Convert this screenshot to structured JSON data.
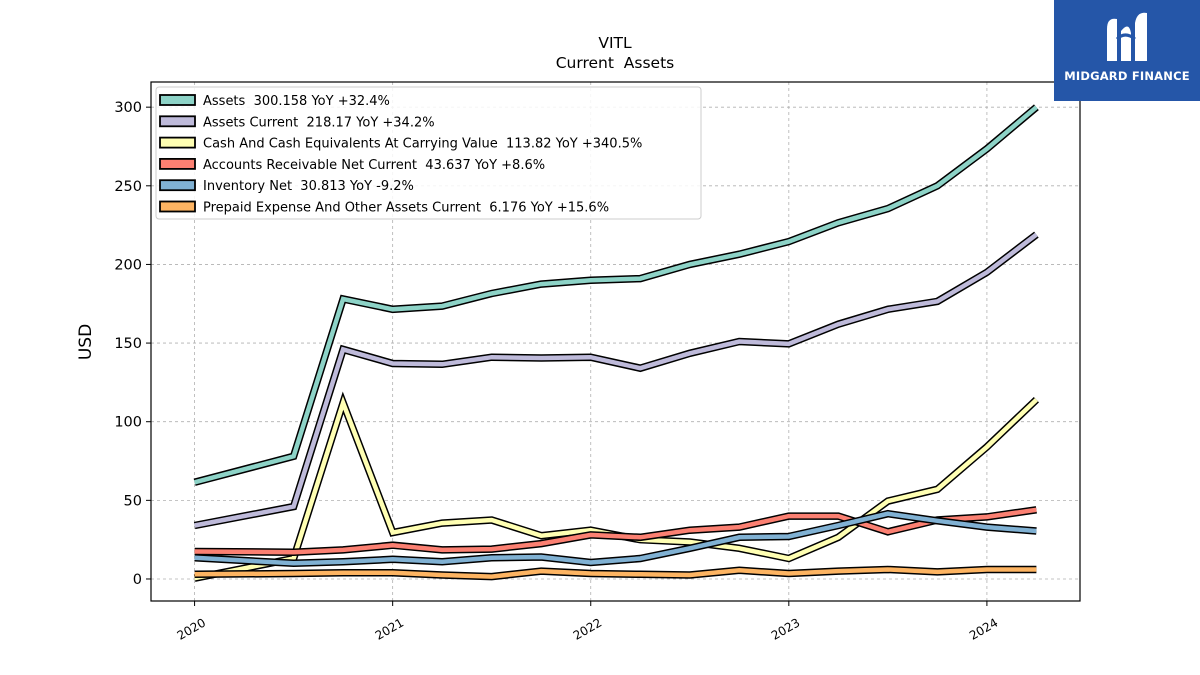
{
  "brand": {
    "name": "MIDGARD FINANCE"
  },
  "chart_data": {
    "type": "line",
    "title": "VITL",
    "subtitle": "Current  Assets",
    "xlabel": "",
    "ylabel": "USD",
    "x_ticks": [
      "2020",
      "2021",
      "2022",
      "2023",
      "2024"
    ],
    "y_ticks": [
      "0",
      "50",
      "100",
      "150",
      "200",
      "250",
      "300"
    ],
    "xlim": [
      2019.78,
      2024.47
    ],
    "ylim": [
      -14,
      316
    ],
    "grid": true,
    "legend_position": "upper-left",
    "x": [
      2020.0,
      2020.5,
      2020.75,
      2021.0,
      2021.25,
      2021.5,
      2021.75,
      2022.0,
      2022.25,
      2022.5,
      2022.75,
      2023.0,
      2023.25,
      2023.5,
      2023.75,
      2024.0,
      2024.25
    ],
    "series": [
      {
        "name": "Assets",
        "legend": "Assets  300.158 YoY +32.4%",
        "color": "#8dd3c7",
        "values": [
          61.5,
          78,
          178,
          171.5,
          173.5,
          181.5,
          187.5,
          190,
          191,
          200,
          206.5,
          214.5,
          226.5,
          235.5,
          250,
          273.5,
          300
        ]
      },
      {
        "name": "Assets Current",
        "legend": "Assets Current  218.17 YoY +34.2%",
        "color": "#bebada",
        "values": [
          34,
          46,
          146,
          137,
          136.5,
          141,
          140.5,
          141,
          134,
          143.5,
          151,
          149.5,
          162,
          171.5,
          176.5,
          195,
          219
        ]
      },
      {
        "name": "Cash And Cash Equivalents At Carrying Value",
        "legend": "Cash And Cash Equivalents At Carrying Value  113.82 YoY +340.5%",
        "color": "#ffffb3",
        "values": [
          0.5,
          13,
          112,
          29.5,
          35.5,
          37.5,
          27.5,
          31,
          25,
          23.5,
          19.5,
          13,
          26.5,
          49.5,
          57,
          84,
          114
        ]
      },
      {
        "name": "Accounts Receivable Net Current",
        "legend": "Accounts Receivable Net Current  43.637 YoY +8.6%",
        "color": "#fb8072",
        "values": [
          17.5,
          17,
          18.5,
          21.5,
          18.5,
          19,
          22.5,
          28,
          26.5,
          31,
          33,
          40,
          40,
          30,
          37.5,
          39.5,
          44
        ]
      },
      {
        "name": "Inventory Net",
        "legend": "Inventory Net  30.813 YoY -9.2%",
        "color": "#80b1d3",
        "values": [
          13.5,
          10,
          11,
          12.5,
          11,
          13.5,
          14,
          10.5,
          13,
          19.5,
          26.5,
          27,
          34,
          41.5,
          37,
          33,
          30.5
        ]
      },
      {
        "name": "Prepaid Expense And Other Assets Current",
        "legend": "Prepaid Expense And Other Assets Current  6.176 YoY +15.6%",
        "color": "#fdb462",
        "values": [
          3,
          3.5,
          4,
          4,
          2.5,
          1.5,
          5,
          3.5,
          3,
          2.5,
          5.5,
          3.5,
          5,
          6,
          4.5,
          6,
          6
        ]
      }
    ]
  }
}
